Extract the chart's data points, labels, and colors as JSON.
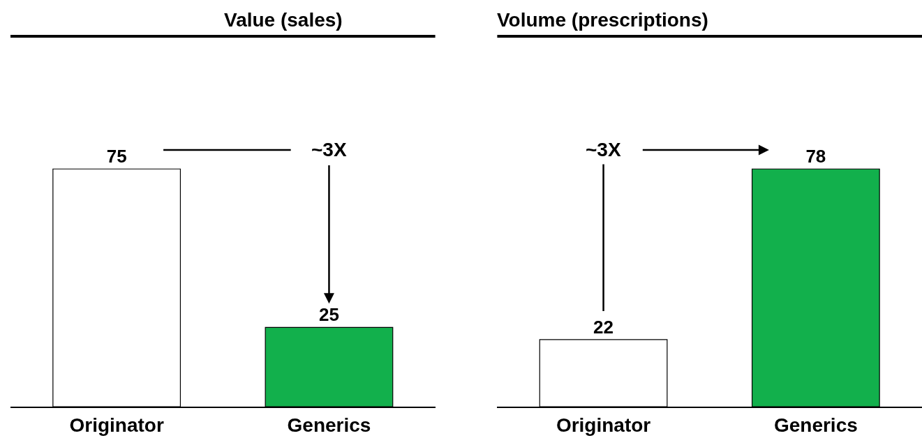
{
  "chart_data": [
    {
      "type": "bar",
      "title": "Value (sales)",
      "categories": [
        "Originator",
        "Generics"
      ],
      "values": [
        75,
        25
      ],
      "colors": [
        "#ffffff",
        "#12b04c"
      ],
      "data_labels": true,
      "tick_labels": "x",
      "annotations": [
        "~3X"
      ]
    },
    {
      "type": "bar",
      "title": "Volume (prescriptions)",
      "categories": [
        "Originator",
        "Generics"
      ],
      "values": [
        22,
        78
      ],
      "colors": [
        "#ffffff",
        "#12b04c"
      ],
      "data_labels": true,
      "tick_labels": "x",
      "annotations": [
        "~3X"
      ]
    }
  ]
}
